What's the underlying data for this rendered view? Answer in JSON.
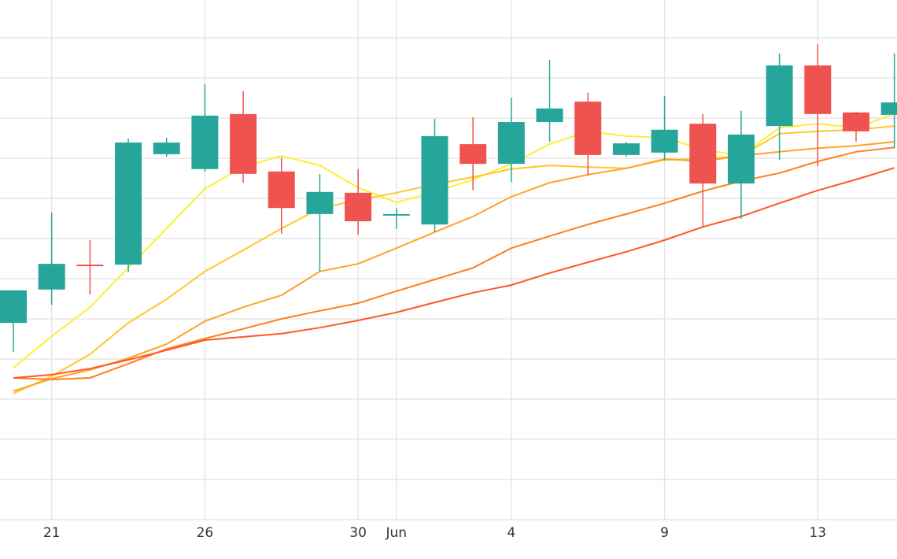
{
  "chart_data": {
    "type": "candlestick",
    "categories": [
      null,
      "21",
      null,
      null,
      null,
      "26",
      null,
      null,
      null,
      "30",
      "Jun",
      null,
      null,
      "4",
      null,
      null,
      null,
      "9",
      null,
      null,
      null,
      "13",
      null,
      null
    ],
    "open": [
      4.9,
      5.73,
      6.35,
      6.35,
      9.1,
      8.73,
      10.1,
      8.67,
      7.61,
      8.14,
      7.57,
      7.35,
      9.35,
      8.86,
      9.9,
      10.41,
      9.08,
      9.14,
      9.86,
      8.37,
      9.8,
      11.31,
      10.14,
      10.08
    ],
    "high": [
      5.71,
      7.65,
      6.96,
      9.49,
      9.51,
      10.84,
      10.67,
      9.02,
      8.61,
      8.73,
      7.76,
      9.98,
      10.02,
      10.51,
      11.45,
      10.63,
      9.41,
      10.55,
      10.1,
      10.18,
      11.61,
      11.84,
      10.16,
      11.61
    ],
    "low": [
      4.18,
      5.35,
      5.61,
      6.16,
      9.04,
      8.67,
      8.39,
      7.12,
      6.18,
      7.1,
      7.24,
      7.16,
      8.2,
      8.41,
      9.41,
      8.57,
      9.04,
      8.94,
      7.27,
      7.49,
      8.96,
      8.8,
      9.41,
      9.25
    ],
    "close": [
      5.71,
      6.37,
      6.33,
      9.39,
      9.39,
      10.06,
      8.61,
      7.76,
      8.16,
      7.43,
      7.61,
      9.55,
      8.86,
      9.9,
      10.24,
      9.08,
      9.37,
      9.71,
      8.37,
      9.59,
      11.31,
      10.1,
      9.67,
      10.39
    ],
    "up_color": "#26a69a",
    "down_color": "#ef5350",
    "lines": [
      {
        "color": "#ffee33",
        "values": [
          3.78,
          4.57,
          5.29,
          6.27,
          7.25,
          8.24,
          8.78,
          9.06,
          8.82,
          8.27,
          7.9,
          8.16,
          8.47,
          8.86,
          9.35,
          9.67,
          9.55,
          9.51,
          9.22,
          9.06,
          9.76,
          9.86,
          9.76,
          10.1
        ]
      },
      {
        "color": "#ffc72c",
        "values": [
          3.14,
          3.57,
          4.12,
          4.9,
          5.49,
          6.18,
          6.71,
          7.25,
          7.75,
          7.96,
          8.14,
          8.35,
          8.53,
          8.73,
          8.82,
          8.78,
          8.75,
          8.96,
          8.98,
          9.06,
          9.61,
          9.67,
          9.71,
          9.8
        ]
      },
      {
        "color": "#ffa323",
        "values": [
          3.2,
          3.51,
          3.73,
          4.02,
          4.37,
          4.94,
          5.29,
          5.59,
          6.18,
          6.37,
          6.76,
          7.16,
          7.55,
          8.04,
          8.39,
          8.59,
          8.75,
          8.98,
          8.92,
          9.06,
          9.16,
          9.25,
          9.31,
          9.41
        ]
      },
      {
        "color": "#ff7f1e",
        "values": [
          3.53,
          3.49,
          3.53,
          3.88,
          4.25,
          4.51,
          4.75,
          5.0,
          5.2,
          5.39,
          5.69,
          5.98,
          6.27,
          6.76,
          7.06,
          7.35,
          7.61,
          7.88,
          8.18,
          8.43,
          8.63,
          8.92,
          9.16,
          9.27
        ]
      },
      {
        "color": "#ff5722",
        "values": [
          3.53,
          3.61,
          3.76,
          3.98,
          4.22,
          4.47,
          4.55,
          4.63,
          4.78,
          4.96,
          5.16,
          5.41,
          5.65,
          5.84,
          6.14,
          6.41,
          6.67,
          6.96,
          7.29,
          7.55,
          7.88,
          8.2,
          8.47,
          8.76
        ]
      }
    ],
    "ylim": [
      0,
      12.94
    ],
    "yticks": [
      0,
      1,
      2,
      3,
      4,
      5,
      6,
      7,
      8,
      9,
      10,
      11,
      12
    ],
    "grid": true
  }
}
